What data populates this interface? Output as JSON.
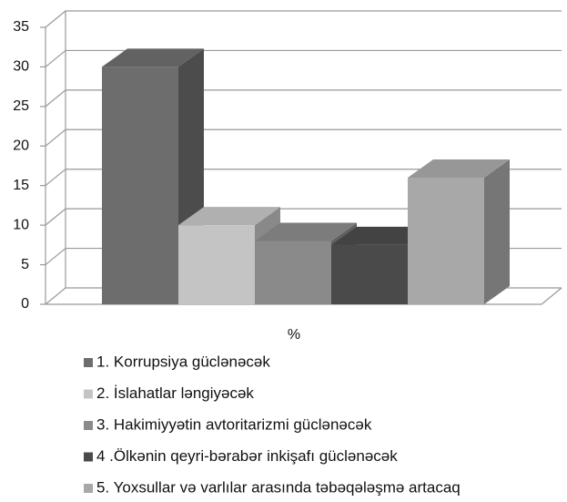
{
  "chart_data": {
    "type": "bar",
    "categories": [
      "%"
    ],
    "series": [
      {
        "name": "1. Korrupsiya güclənəcək",
        "color": "#6d6d6d",
        "values": [
          30
        ]
      },
      {
        "name": "2. İslahatlar ləngiyəcək",
        "color": "#c4c4c4",
        "values": [
          10
        ]
      },
      {
        "name": "3. Hakimiyyətin avtoritarizmi güclənəcək",
        "color": "#8a8a8a",
        "values": [
          8
        ]
      },
      {
        "name": "4 .Ölkənin qeyri-bərabər inkişafı güclənəcək",
        "color": "#4a4a4a",
        "values": [
          7.5
        ]
      },
      {
        "name": "5. Yoxsullar və varlılar arasında təbəqələşmə artacaq",
        "color": "#a8a8a8",
        "values": [
          16
        ]
      }
    ],
    "ylim": [
      0,
      35
    ],
    "yticks": [
      0,
      5,
      10,
      15,
      20,
      25,
      30,
      35
    ],
    "grid": true,
    "legend": "bottom",
    "view": "3d"
  }
}
